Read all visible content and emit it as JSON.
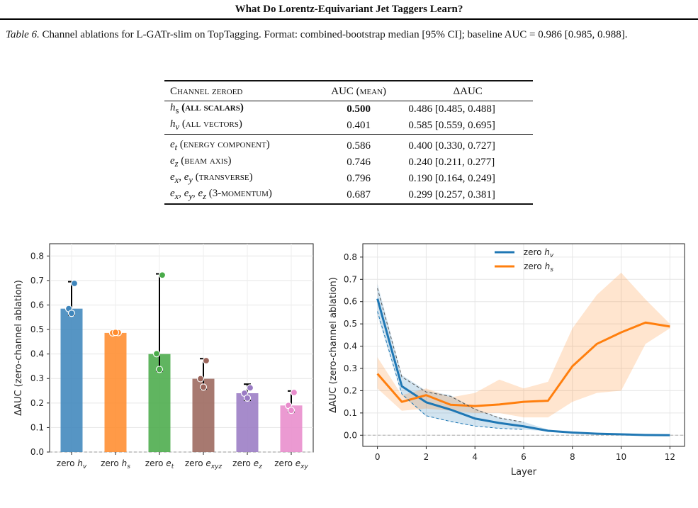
{
  "running_head": "What Do Lorentz-Equivariant Jet Taggers Learn?",
  "caption": {
    "label": "Table 6.",
    "text": "Channel ablations for L-GATr-slim on TopTagging. Format: combined-bootstrap median [95% CI]; baseline AUC = 0.986 [0.985, 0.988]."
  },
  "table": {
    "headers": [
      "Channel zeroed",
      "AUC (mean)",
      "ΔAUC"
    ],
    "rows": [
      {
        "sym": "hs",
        "desc": "(all scalars)",
        "auc": "0.500",
        "delta": "0.486 [0.485, 0.488]",
        "bold": true
      },
      {
        "sym": "hv",
        "desc": "(all vectors)",
        "auc": "0.401",
        "delta": "0.585 [0.559, 0.695]"
      },
      {
        "sym": "et",
        "desc": "(energy component)",
        "auc": "0.586",
        "delta": "0.400 [0.330, 0.727]"
      },
      {
        "sym": "ez",
        "desc": "(beam axis)",
        "auc": "0.746",
        "delta": "0.240 [0.211, 0.277]"
      },
      {
        "sym": "ex, ey",
        "desc": "(transverse)",
        "auc": "0.796",
        "delta": "0.190 [0.164, 0.249]"
      },
      {
        "sym": "ex, ey, ez",
        "desc": "(3-momentum)",
        "auc": "0.687",
        "delta": "0.299 [0.257, 0.381]"
      }
    ]
  },
  "chart_data": [
    {
      "type": "bar",
      "ylabel": "ΔAUC (zero-channel ablation)",
      "ylim": [
        0,
        0.85
      ],
      "yticks": [
        "0.0",
        "0.1",
        "0.2",
        "0.3",
        "0.4",
        "0.5",
        "0.6",
        "0.7",
        "0.8"
      ],
      "grid": true,
      "categories": [
        "zero hv",
        "zero hs",
        "zero et",
        "zero exyz",
        "zero ez",
        "zero exy"
      ],
      "values": [
        0.585,
        0.486,
        0.4,
        0.299,
        0.24,
        0.19
      ],
      "ci": [
        [
          0.559,
          0.695
        ],
        [
          0.485,
          0.488
        ],
        [
          0.33,
          0.727
        ],
        [
          0.257,
          0.381
        ],
        [
          0.211,
          0.277
        ],
        [
          0.164,
          0.249
        ]
      ],
      "points": [
        [
          0.688,
          0.585,
          0.566
        ],
        [
          0.487,
          0.486,
          0.488
        ],
        [
          0.722,
          0.401,
          0.337
        ],
        [
          0.373,
          0.299,
          0.265
        ],
        [
          0.262,
          0.24,
          0.22
        ],
        [
          0.243,
          0.19,
          0.17
        ]
      ],
      "colors": [
        "#3f86bc",
        "#ff8c2e",
        "#4aab4a",
        "#9b665c",
        "#9a7bc4",
        "#e88ccc"
      ]
    },
    {
      "type": "line",
      "xlabel": "Layer",
      "ylabel": "ΔAUC (zero-channel ablation)",
      "xlim": [
        -0.6,
        12.6
      ],
      "ylim": [
        -0.05,
        0.86
      ],
      "xticks": [
        "0",
        "2",
        "4",
        "6",
        "8",
        "10",
        "12"
      ],
      "yticks": [
        "0.0",
        "0.1",
        "0.2",
        "0.3",
        "0.4",
        "0.5",
        "0.6",
        "0.7",
        "0.8"
      ],
      "grid": true,
      "legend": "top-center",
      "series": [
        {
          "name": "zero hv",
          "color": "#1f77b4",
          "x": [
            0,
            1,
            2,
            3,
            4,
            5,
            6,
            7,
            8,
            9,
            10,
            11,
            12
          ],
          "y": [
            0.613,
            0.22,
            0.148,
            0.115,
            0.075,
            0.055,
            0.04,
            0.02,
            0.012,
            0.007,
            0.004,
            0.001,
            0.0
          ],
          "lo": [
            0.54,
            0.18,
            0.085,
            0.06,
            0.04,
            0.03,
            0.025,
            0.018,
            0.011,
            0.006,
            0.003,
            0.0,
            0.0
          ],
          "hi": [
            0.68,
            0.27,
            0.2,
            0.18,
            0.12,
            0.08,
            0.06,
            0.025,
            0.013,
            0.008,
            0.005,
            0.002,
            0.001
          ]
        },
        {
          "name": "zero hs",
          "color": "#ff7f0e",
          "x": [
            0,
            1,
            2,
            3,
            4,
            5,
            6,
            7,
            8,
            9,
            10,
            11,
            12
          ],
          "y": [
            0.276,
            0.15,
            0.18,
            0.137,
            0.131,
            0.138,
            0.15,
            0.155,
            0.31,
            0.41,
            0.462,
            0.506,
            0.488
          ],
          "lo": [
            0.21,
            0.11,
            0.12,
            0.11,
            0.1,
            0.1,
            0.08,
            0.08,
            0.15,
            0.19,
            0.2,
            0.41,
            0.48
          ],
          "hi": [
            0.35,
            0.18,
            0.21,
            0.17,
            0.19,
            0.25,
            0.21,
            0.24,
            0.48,
            0.63,
            0.73,
            0.61,
            0.5
          ]
        }
      ]
    }
  ]
}
